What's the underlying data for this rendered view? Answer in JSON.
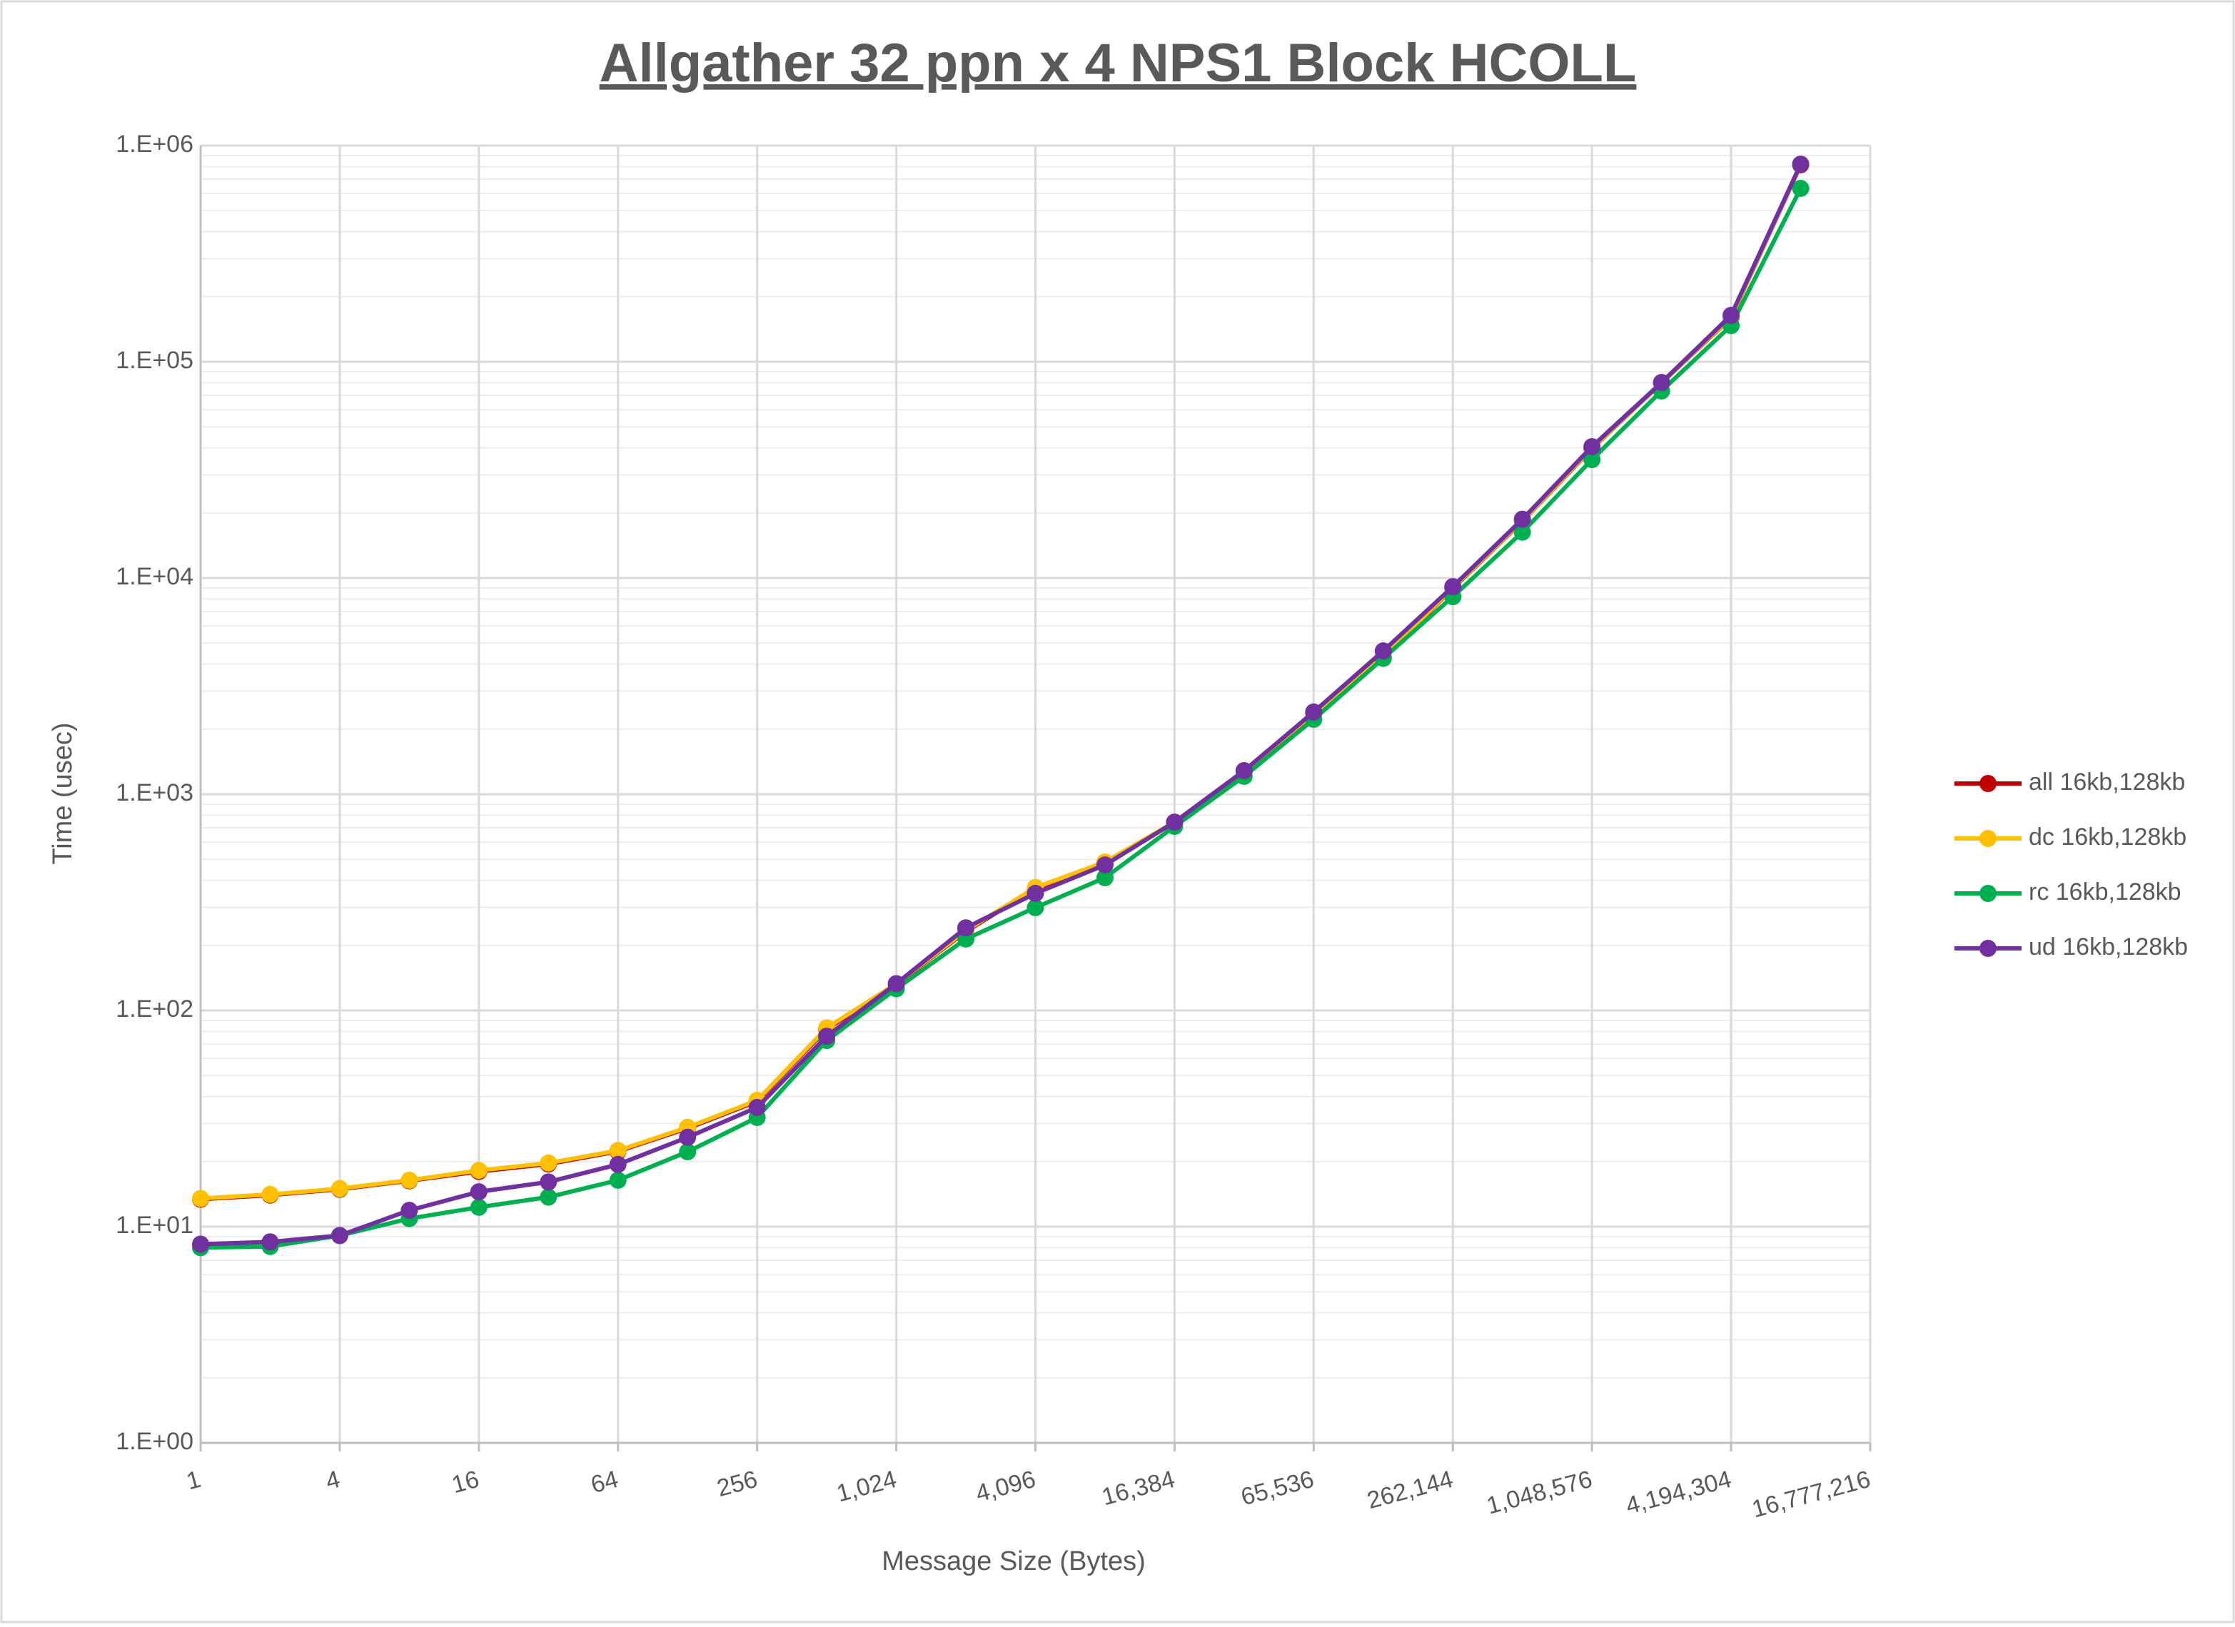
{
  "chart_data": {
    "type": "line",
    "title": "Allgather 32 ppn x 4 NPS1 Block HCOLL",
    "x_label": "Message Size (Bytes)",
    "y_label": "Time (usec)",
    "x_scale": "log2",
    "y_scale": "log",
    "grid": true,
    "minor_grid": true,
    "legend": "right",
    "x": [
      1,
      2,
      4,
      8,
      16,
      32,
      64,
      128,
      256,
      512,
      1024,
      2048,
      4096,
      8192,
      16384,
      32768,
      65536,
      131072,
      262144,
      524288,
      1048576,
      2097152,
      4194304,
      8388608
    ],
    "xlim": [
      1,
      16777216
    ],
    "xticks": [
      1,
      4,
      16,
      64,
      256,
      {
        "value": 1024,
        "label": "1,024"
      },
      {
        "value": 4096,
        "label": "4,096"
      },
      {
        "value": 16384,
        "label": "16,384"
      },
      {
        "value": 65536,
        "label": "65,536"
      },
      {
        "value": 262144,
        "label": "262,144"
      },
      {
        "value": 1048576,
        "label": "1,048,576"
      },
      {
        "value": 4194304,
        "label": "4,194,304"
      },
      {
        "value": 16777216,
        "label": "16,777,216"
      }
    ],
    "ylim": [
      1,
      1000000
    ],
    "yticks": [
      {
        "value": 1,
        "label": "1.E+00"
      },
      {
        "value": 10,
        "label": "1.E+01"
      },
      {
        "value": 100,
        "label": "1.E+02"
      },
      {
        "value": 1000,
        "label": "1.E+03"
      },
      {
        "value": 10000,
        "label": "1.E+04"
      },
      {
        "value": 100000,
        "label": "1.E+05"
      },
      {
        "value": 1000000,
        "label": "1.E+06"
      }
    ],
    "series": [
      {
        "name": "all 16kb,128kb",
        "color": "#c00000",
        "values": [
          13.4,
          14.0,
          14.9,
          16.3,
          18.0,
          19.5,
          22.3,
          28.5,
          38.0,
          82,
          132,
          232,
          365,
          480,
          740,
          1280,
          2350,
          4300,
          8950,
          18300,
          39700,
          80000,
          160000,
          815000
        ]
      },
      {
        "name": "dc 16kb,128kb",
        "color": "#ffc000",
        "values": [
          13.5,
          14.1,
          15.0,
          16.4,
          18.2,
          19.7,
          22.5,
          28.8,
          38.4,
          83,
          133,
          234,
          370,
          486,
          743,
          1285,
          2360,
          4330,
          9000,
          18400,
          39900,
          80200,
          161000,
          820000
        ]
      },
      {
        "name": "rc 16kb,128kb",
        "color": "#00b050",
        "values": [
          8.0,
          8.1,
          9.1,
          10.9,
          12.3,
          13.7,
          16.4,
          22.2,
          32,
          72.6,
          126,
          214,
          299,
          411,
          710,
          1210,
          2220,
          4250,
          8200,
          16300,
          35300,
          73300,
          147000,
          634000
        ]
      },
      {
        "name": "ud 16kb,128kb",
        "color": "#7030a0",
        "values": [
          8.3,
          8.5,
          9.1,
          11.9,
          14.5,
          16.1,
          19.4,
          25.9,
          35.6,
          76,
          133,
          241,
          348,
          471,
          743,
          1285,
          2400,
          4600,
          9120,
          18700,
          40500,
          80200,
          164000,
          820000
        ]
      }
    ]
  }
}
